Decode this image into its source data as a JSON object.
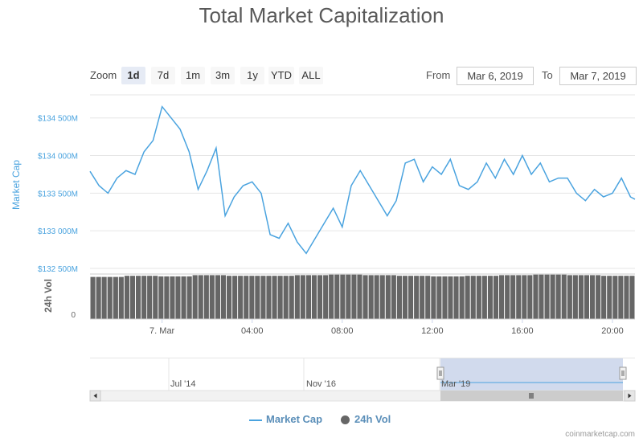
{
  "title": "Total Market Capitalization",
  "zoom": {
    "label": "Zoom",
    "options": [
      "1d",
      "7d",
      "1m",
      "3m",
      "1y",
      "YTD",
      "ALL"
    ],
    "selected": "1d"
  },
  "range": {
    "from_label": "From",
    "from_value": "Mar 6, 2019",
    "to_label": "To",
    "to_value": "Mar 7, 2019"
  },
  "colors": {
    "market_cap": "#4aa3df",
    "volume": "#666666",
    "grid": "#e6e6e6",
    "navigator_mask": "#ccd6eb"
  },
  "chart_data": {
    "type": "line",
    "title": "Total Market Capitalization",
    "x_tick_labels": [
      "7. Mar",
      "04:00",
      "08:00",
      "12:00",
      "16:00",
      "20:00"
    ],
    "x_tick_hours": [
      24,
      28,
      32,
      36,
      40,
      44
    ],
    "x_range_hours": [
      20.8,
      45.0
    ],
    "y_axis": {
      "label": "Market Cap",
      "tick_labels": [
        "$132 500M",
        "$133 000M",
        "$133 500M",
        "$134 000M",
        "$134 500M"
      ],
      "ticks": [
        132500,
        133000,
        133500,
        134000,
        134500
      ],
      "range": [
        132500,
        134700
      ]
    },
    "volume_axis": {
      "label": "24h Vol",
      "tick_labels": [
        "0"
      ],
      "relative_level": 0.75
    },
    "series": [
      {
        "name": "Market Cap",
        "color": "#4aa3df",
        "x_hours": [
          20.8,
          21.2,
          21.6,
          22.0,
          22.4,
          22.8,
          23.2,
          23.6,
          24.0,
          24.4,
          24.8,
          25.2,
          25.6,
          26.0,
          26.4,
          26.8,
          27.2,
          27.6,
          28.0,
          28.4,
          28.8,
          29.2,
          29.6,
          30.0,
          30.4,
          30.8,
          31.2,
          31.6,
          32.0,
          32.4,
          32.8,
          33.2,
          33.6,
          34.0,
          34.4,
          34.8,
          35.2,
          35.6,
          36.0,
          36.4,
          36.8,
          37.2,
          37.6,
          38.0,
          38.4,
          38.8,
          39.2,
          39.6,
          40.0,
          40.4,
          40.8,
          41.2,
          41.6,
          42.0,
          42.4,
          42.8,
          43.2,
          43.6,
          44.0,
          44.4,
          44.8,
          45.0
        ],
        "values": [
          133790,
          133600,
          133500,
          133700,
          133800,
          133750,
          134050,
          134200,
          134650,
          134500,
          134350,
          134050,
          133550,
          133800,
          134100,
          133200,
          133450,
          133600,
          133650,
          133500,
          132950,
          132900,
          133100,
          132850,
          132700,
          132900,
          133100,
          133300,
          133050,
          133600,
          133800,
          133600,
          133400,
          133200,
          133400,
          133900,
          133950,
          133650,
          133850,
          133750,
          133950,
          133600,
          133550,
          133650,
          133900,
          133700,
          133950,
          133750,
          134000,
          133750,
          133900,
          133650,
          133700,
          133700,
          133500,
          133400,
          133550,
          133450,
          133500,
          133700,
          133450,
          133420
        ]
      },
      {
        "name": "24h Vol",
        "color": "#666666",
        "values_relative": [
          0.73,
          0.75,
          0.74,
          0.76,
          0.75,
          0.75,
          0.76,
          0.77,
          0.76,
          0.75,
          0.74,
          0.75,
          0.76,
          0.77,
          0.76,
          0.75
        ]
      }
    ],
    "legend": {
      "position": "bottom-center",
      "entries": [
        "Market Cap",
        "24h Vol"
      ]
    },
    "grid": true
  },
  "navigator": {
    "labels": [
      "Jul '14",
      "Nov '16",
      "Mar '19"
    ]
  },
  "credit": "coinmarketcap.com"
}
